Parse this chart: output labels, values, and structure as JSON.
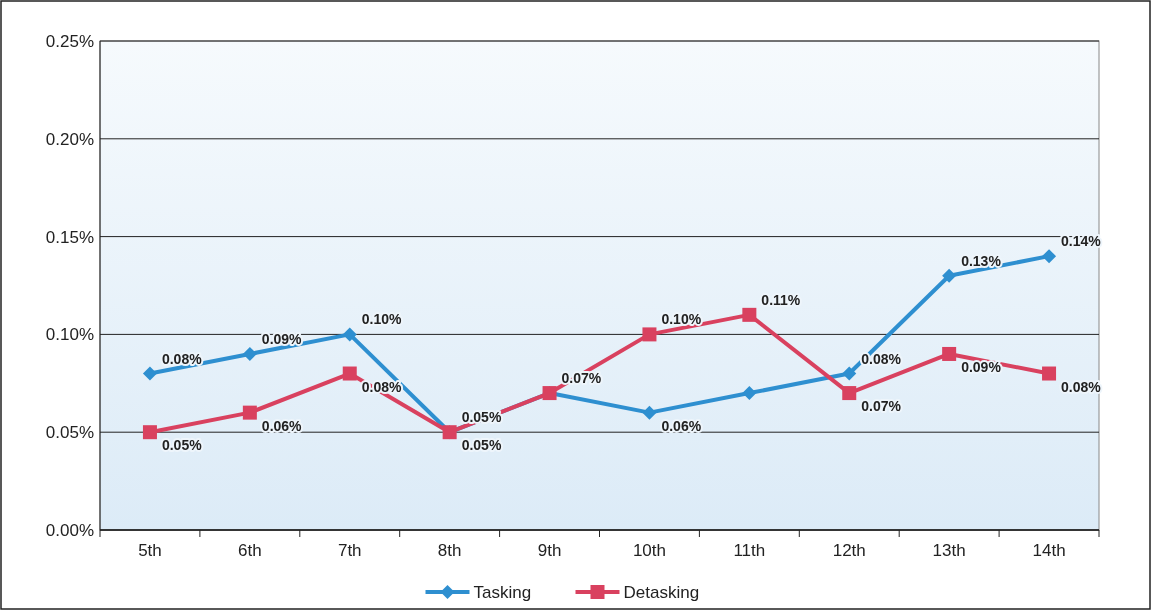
{
  "chart_data": {
    "type": "line",
    "categories": [
      "5th",
      "6th",
      "7th",
      "8th",
      "9th",
      "10th",
      "11th",
      "12th",
      "13th",
      "14th"
    ],
    "series": [
      {
        "name": "Tasking",
        "color": "#2e8fd0",
        "marker": "diamond",
        "values": [
          0.08,
          0.09,
          0.1,
          0.05,
          0.07,
          0.06,
          0.07,
          0.08,
          0.13,
          0.14
        ],
        "value_labels": [
          "0.08%",
          "0.09%",
          "0.10%",
          "0.05%",
          "0.07%",
          "0.06%",
          null,
          "0.08%",
          "0.13%",
          "0.14%"
        ]
      },
      {
        "name": "Detasking",
        "color": "#d9415f",
        "marker": "square",
        "values": [
          0.05,
          0.06,
          0.08,
          0.05,
          0.07,
          0.1,
          0.11,
          0.07,
          0.09,
          0.08
        ],
        "value_labels": [
          "0.05%",
          "0.06%",
          "0.08%",
          "0.05%",
          null,
          "0.10%",
          "0.11%",
          "0.07%",
          "0.09%",
          "0.08%"
        ]
      }
    ],
    "ylim": [
      0,
      0.25
    ],
    "yticks": [
      {
        "value": 0,
        "label": "0.00%"
      },
      {
        "value": 0.05,
        "label": "0.05%"
      },
      {
        "value": 0.1,
        "label": "0.10%"
      },
      {
        "value": 0.15,
        "label": "0.15%"
      },
      {
        "value": 0.2,
        "label": "0.20%"
      },
      {
        "value": 0.25,
        "label": "0.25%"
      }
    ],
    "grid": "y",
    "legend": "bottom"
  }
}
